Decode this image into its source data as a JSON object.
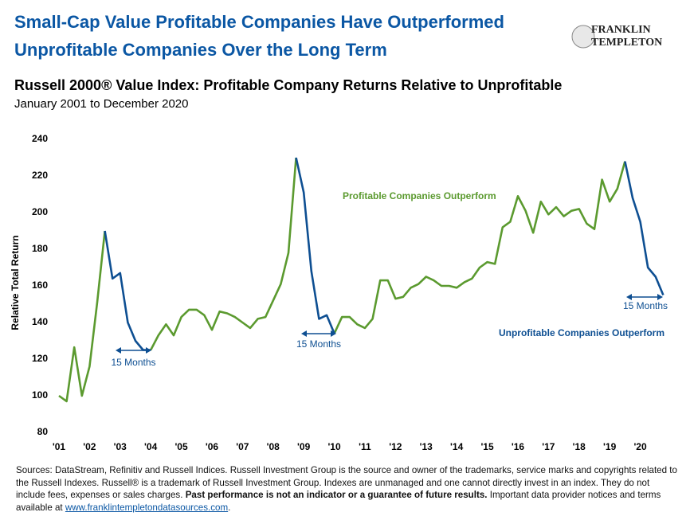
{
  "header": {
    "title_line1": "Small-Cap Value Profitable Companies Have Outperformed",
    "title_line2": "Unprofitable Companies Over the Long Term",
    "logo_line1": "FRANKLIN",
    "logo_line2": "TEMPLETON"
  },
  "chart_data": {
    "type": "line",
    "title": "Russell 2000® Value Index: Profitable Company Returns Relative to Unprofitable",
    "subtitle": "January 2001 to December 2020",
    "y_label": "Relative Total Return",
    "x": [
      2001,
      2001.25,
      2001.5,
      2001.75,
      2002,
      2002.25,
      2002.5,
      2002.75,
      2003,
      2003.25,
      2003.5,
      2003.75,
      2004,
      2004.25,
      2004.5,
      2004.75,
      2005,
      2005.25,
      2005.5,
      2005.75,
      2006,
      2006.25,
      2006.5,
      2006.75,
      2007,
      2007.25,
      2007.5,
      2007.75,
      2008,
      2008.25,
      2008.5,
      2008.75,
      2009,
      2009.25,
      2009.5,
      2009.75,
      2010,
      2010.25,
      2010.5,
      2010.75,
      2011,
      2011.25,
      2011.5,
      2011.75,
      2012,
      2012.25,
      2012.5,
      2012.75,
      2013,
      2013.25,
      2013.5,
      2013.75,
      2014,
      2014.25,
      2014.5,
      2014.75,
      2015,
      2015.25,
      2015.5,
      2015.75,
      2016,
      2016.25,
      2016.5,
      2016.75,
      2017,
      2017.25,
      2017.5,
      2017.75,
      2018,
      2018.25,
      2018.5,
      2018.75,
      2019,
      2019.25,
      2019.5,
      2019.75,
      2020,
      2020.25,
      2020.5,
      2020.75
    ],
    "series": [
      {
        "name": "Profitable Companies Outperform",
        "color": "#5b9a2f",
        "values": [
          100,
          97,
          126.5,
          100,
          116,
          151,
          190,
          null,
          null,
          null,
          null,
          null,
          125,
          133,
          139,
          133,
          143,
          147,
          147,
          144,
          136,
          146,
          145,
          143,
          140,
          137,
          142,
          143,
          152,
          161,
          178,
          230,
          null,
          null,
          null,
          null,
          134,
          143,
          143,
          139,
          137,
          142,
          163,
          163,
          153,
          154,
          159,
          161,
          165,
          163,
          160,
          160,
          159,
          162,
          164,
          170,
          173,
          172,
          192,
          195,
          209,
          201,
          189,
          206,
          199,
          203,
          198,
          201,
          202,
          194,
          191,
          218,
          206,
          213,
          228,
          null,
          null,
          null,
          null,
          null
        ]
      },
      {
        "name": "Unprofitable Companies Outperform",
        "color": "#0e4f92",
        "values": [
          null,
          null,
          null,
          null,
          null,
          null,
          190,
          164,
          167,
          140,
          130,
          125,
          125,
          null,
          null,
          null,
          null,
          null,
          null,
          null,
          null,
          null,
          null,
          null,
          null,
          null,
          null,
          null,
          null,
          null,
          null,
          230,
          211,
          168,
          142,
          144,
          134,
          null,
          null,
          null,
          null,
          null,
          null,
          null,
          null,
          null,
          null,
          null,
          null,
          null,
          null,
          null,
          null,
          null,
          null,
          null,
          null,
          null,
          null,
          null,
          null,
          null,
          null,
          null,
          null,
          null,
          null,
          null,
          null,
          null,
          null,
          null,
          null,
          null,
          228,
          208,
          195,
          170,
          165,
          155
        ]
      }
    ],
    "annotations": [
      "15 Months",
      "15 Months",
      "15 Months"
    ],
    "xlim": [
      2000.85,
      2020.85
    ],
    "xticks": [
      {
        "value": 2001,
        "label": "'01"
      },
      {
        "value": 2002,
        "label": "'02"
      },
      {
        "value": 2003,
        "label": "'03"
      },
      {
        "value": 2004,
        "label": "'04"
      },
      {
        "value": 2005,
        "label": "'05"
      },
      {
        "value": 2006,
        "label": "'06"
      },
      {
        "value": 2007,
        "label": "'07"
      },
      {
        "value": 2008,
        "label": "'08"
      },
      {
        "value": 2009,
        "label": "'09"
      },
      {
        "value": 2010,
        "label": "'10"
      },
      {
        "value": 2011,
        "label": "'11"
      },
      {
        "value": 2012,
        "label": "'12"
      },
      {
        "value": 2013,
        "label": "'13"
      },
      {
        "value": 2014,
        "label": "'14"
      },
      {
        "value": 2015,
        "label": "'15"
      },
      {
        "value": 2016,
        "label": "'16"
      },
      {
        "value": 2017,
        "label": "'17"
      },
      {
        "value": 2018,
        "label": "'18"
      },
      {
        "value": 2019,
        "label": "'19"
      },
      {
        "value": 2020,
        "label": "'20"
      }
    ],
    "ylim": [
      80,
      240
    ],
    "yticks": [
      80,
      100,
      120,
      140,
      160,
      180,
      200,
      220,
      240
    ],
    "grid": false
  },
  "footer": {
    "text1": "Sources: DataStream, Refinitiv and Russell Indices. Russell Investment Group is the source and owner of the trademarks, service marks and copyrights related to the Russell Indexes. Russell® is a trademark of Russell Investment Group. Indexes are unmanaged and one cannot directly invest in an index. They do not include fees, expenses or sales charges.",
    "bold": "Past performance is not an indicator or a guarantee of future results.",
    "text2": "Important data provider notices and terms available at",
    "link": "www.franklintempletondatasources.com",
    "end": "."
  }
}
